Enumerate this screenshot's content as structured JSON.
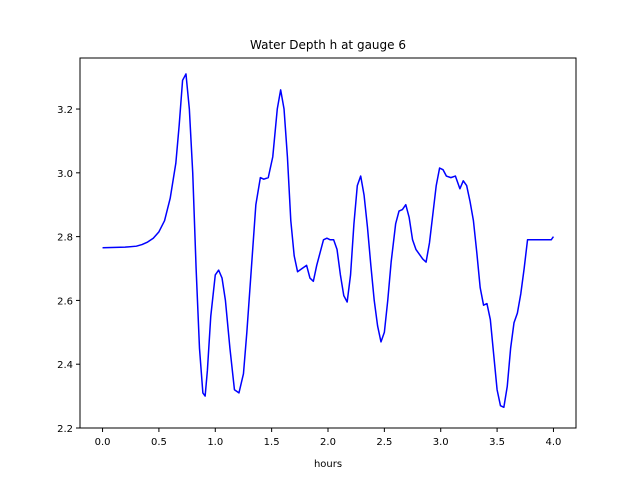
{
  "chart_data": {
    "type": "line",
    "title": "Water Depth h at gauge 6",
    "xlabel": "hours",
    "ylabel": "",
    "xlim": [
      -0.2,
      4.2
    ],
    "ylim": [
      2.2,
      3.36
    ],
    "xticks": [
      0.0,
      0.5,
      1.0,
      1.5,
      2.0,
      2.5,
      3.0,
      3.5,
      4.0
    ],
    "xtick_labels": [
      "0.0",
      "0.5",
      "1.0",
      "1.5",
      "2.0",
      "2.5",
      "3.0",
      "3.5",
      "4.0"
    ],
    "yticks": [
      2.2,
      2.4,
      2.6,
      2.8,
      3.0,
      3.2
    ],
    "ytick_labels": [
      "2.2",
      "2.4",
      "2.6",
      "2.8",
      "3.0",
      "3.2"
    ],
    "grid": false,
    "series": [
      {
        "color": "#0000ff",
        "x": [
          0.0,
          0.2,
          0.3,
          0.35,
          0.4,
          0.45,
          0.5,
          0.55,
          0.6,
          0.65,
          0.68,
          0.71,
          0.74,
          0.77,
          0.8,
          0.83,
          0.86,
          0.89,
          0.91,
          0.93,
          0.96,
          1.0,
          1.03,
          1.06,
          1.09,
          1.13,
          1.17,
          1.21,
          1.25,
          1.28,
          1.32,
          1.36,
          1.4,
          1.43,
          1.47,
          1.51,
          1.55,
          1.58,
          1.61,
          1.64,
          1.67,
          1.7,
          1.73,
          1.77,
          1.81,
          1.84,
          1.87,
          1.9,
          1.93,
          1.96,
          1.99,
          2.02,
          2.05,
          2.08,
          2.11,
          2.14,
          2.17,
          2.2,
          2.23,
          2.26,
          2.29,
          2.32,
          2.35,
          2.38,
          2.41,
          2.44,
          2.47,
          2.5,
          2.53,
          2.56,
          2.6,
          2.63,
          2.66,
          2.69,
          2.72,
          2.75,
          2.78,
          2.81,
          2.84,
          2.87,
          2.9,
          2.93,
          2.96,
          2.99,
          3.02,
          3.05,
          3.09,
          3.13,
          3.17,
          3.2,
          3.23,
          3.26,
          3.29,
          3.32,
          3.35,
          3.38,
          3.41,
          3.44,
          3.47,
          3.5,
          3.53,
          3.56,
          3.59,
          3.62,
          3.65,
          3.68,
          3.71,
          3.74,
          3.77,
          3.8,
          3.83,
          3.86,
          3.89,
          3.92,
          3.95,
          3.98,
          4.0
        ],
        "y": [
          2.765,
          2.767,
          2.77,
          2.775,
          2.783,
          2.795,
          2.815,
          2.85,
          2.92,
          3.03,
          3.15,
          3.29,
          3.31,
          3.2,
          3.0,
          2.7,
          2.45,
          2.31,
          2.3,
          2.38,
          2.55,
          2.68,
          2.695,
          2.67,
          2.6,
          2.45,
          2.32,
          2.31,
          2.37,
          2.5,
          2.7,
          2.9,
          2.985,
          2.98,
          2.985,
          3.05,
          3.2,
          3.26,
          3.2,
          3.05,
          2.85,
          2.74,
          2.69,
          2.7,
          2.71,
          2.67,
          2.66,
          2.71,
          2.75,
          2.79,
          2.795,
          2.79,
          2.79,
          2.76,
          2.68,
          2.615,
          2.595,
          2.68,
          2.84,
          2.96,
          2.99,
          2.93,
          2.83,
          2.71,
          2.6,
          2.52,
          2.47,
          2.5,
          2.6,
          2.72,
          2.84,
          2.88,
          2.885,
          2.9,
          2.86,
          2.79,
          2.76,
          2.745,
          2.73,
          2.72,
          2.78,
          2.87,
          2.96,
          3.015,
          3.01,
          2.99,
          2.985,
          2.99,
          2.95,
          2.975,
          2.96,
          2.91,
          2.85,
          2.75,
          2.64,
          2.585,
          2.59,
          2.54,
          2.43,
          2.32,
          2.27,
          2.265,
          2.33,
          2.45,
          2.53,
          2.56,
          2.62,
          2.7,
          2.79,
          2.79,
          2.79,
          2.79,
          2.79,
          2.79,
          2.79,
          2.79,
          2.8
        ]
      }
    ]
  }
}
